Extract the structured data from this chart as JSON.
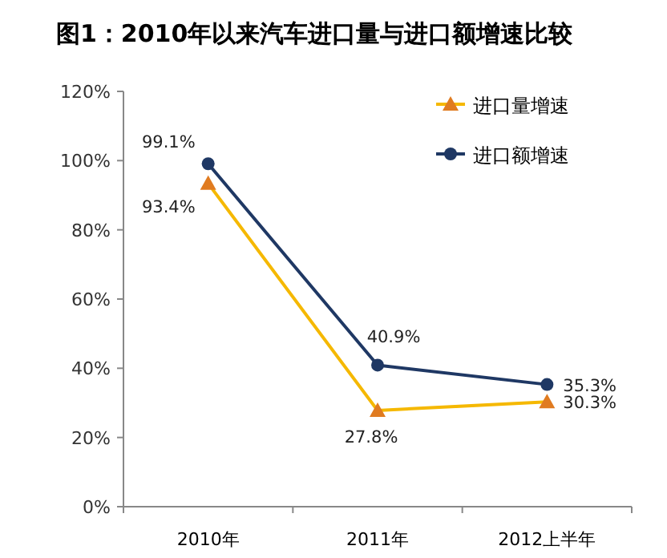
{
  "chart_data": {
    "type": "line",
    "title": "图1：2010年以来汽车进口量与进口额增速比较",
    "categories": [
      "2010年",
      "2011年",
      "2012上半年"
    ],
    "series": [
      {
        "name": "进口量增速",
        "color": "#f5b800",
        "colors": [
          "#e07b20",
          "#e07b20",
          "#e07b20"
        ],
        "marker": "triangle",
        "values": [
          93.4,
          27.8,
          30.3
        ],
        "value_labels": [
          "93.4%",
          "27.8%",
          "30.3%"
        ]
      },
      {
        "name": "进口额增速",
        "color": "#1f3864",
        "marker": "circle",
        "values": [
          99.1,
          40.9,
          35.3
        ],
        "value_labels": [
          "99.1%",
          "40.9%",
          "35.3%"
        ]
      }
    ],
    "ylim": [
      0,
      120
    ],
    "yticks": [
      {
        "value": 0,
        "label": "0%"
      },
      {
        "value": 20,
        "label": "20%"
      },
      {
        "value": 40,
        "label": "40%"
      },
      {
        "value": 60,
        "label": "60%"
      },
      {
        "value": 80,
        "label": "80%"
      },
      {
        "value": 100,
        "label": "100%"
      },
      {
        "value": 120,
        "label": "120%"
      }
    ],
    "legend": "top right",
    "grid": false
  }
}
